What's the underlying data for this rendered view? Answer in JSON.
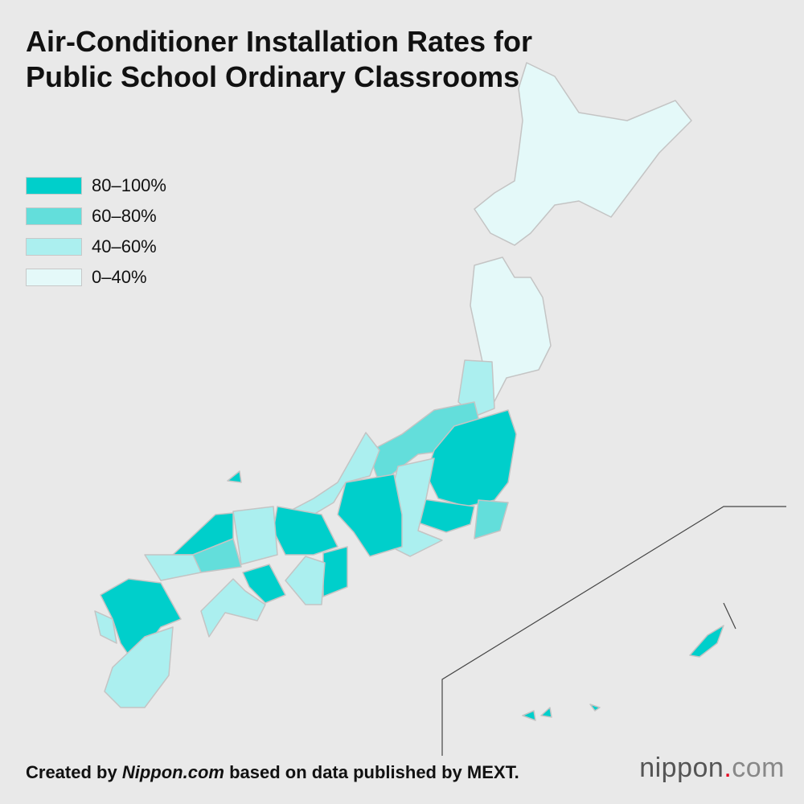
{
  "header": {
    "title": "Air-Conditioner Installation Rates for Public School Ordinary Classrooms"
  },
  "legend": {
    "items": [
      {
        "label": "80–100%",
        "color": "#00cfcb"
      },
      {
        "label": "60–80%",
        "color": "#63dedb"
      },
      {
        "label": "40–60%",
        "color": "#abefef"
      },
      {
        "label": "0–40%",
        "color": "#e4f9f9"
      }
    ]
  },
  "footer": {
    "credit_prefix": "Created by",
    "credit_source": "Nippon.com",
    "credit_suffix": "based on data published by MEXT."
  },
  "logo": {
    "name": "nippon",
    "dot": ".",
    "domain": "com"
  }
}
